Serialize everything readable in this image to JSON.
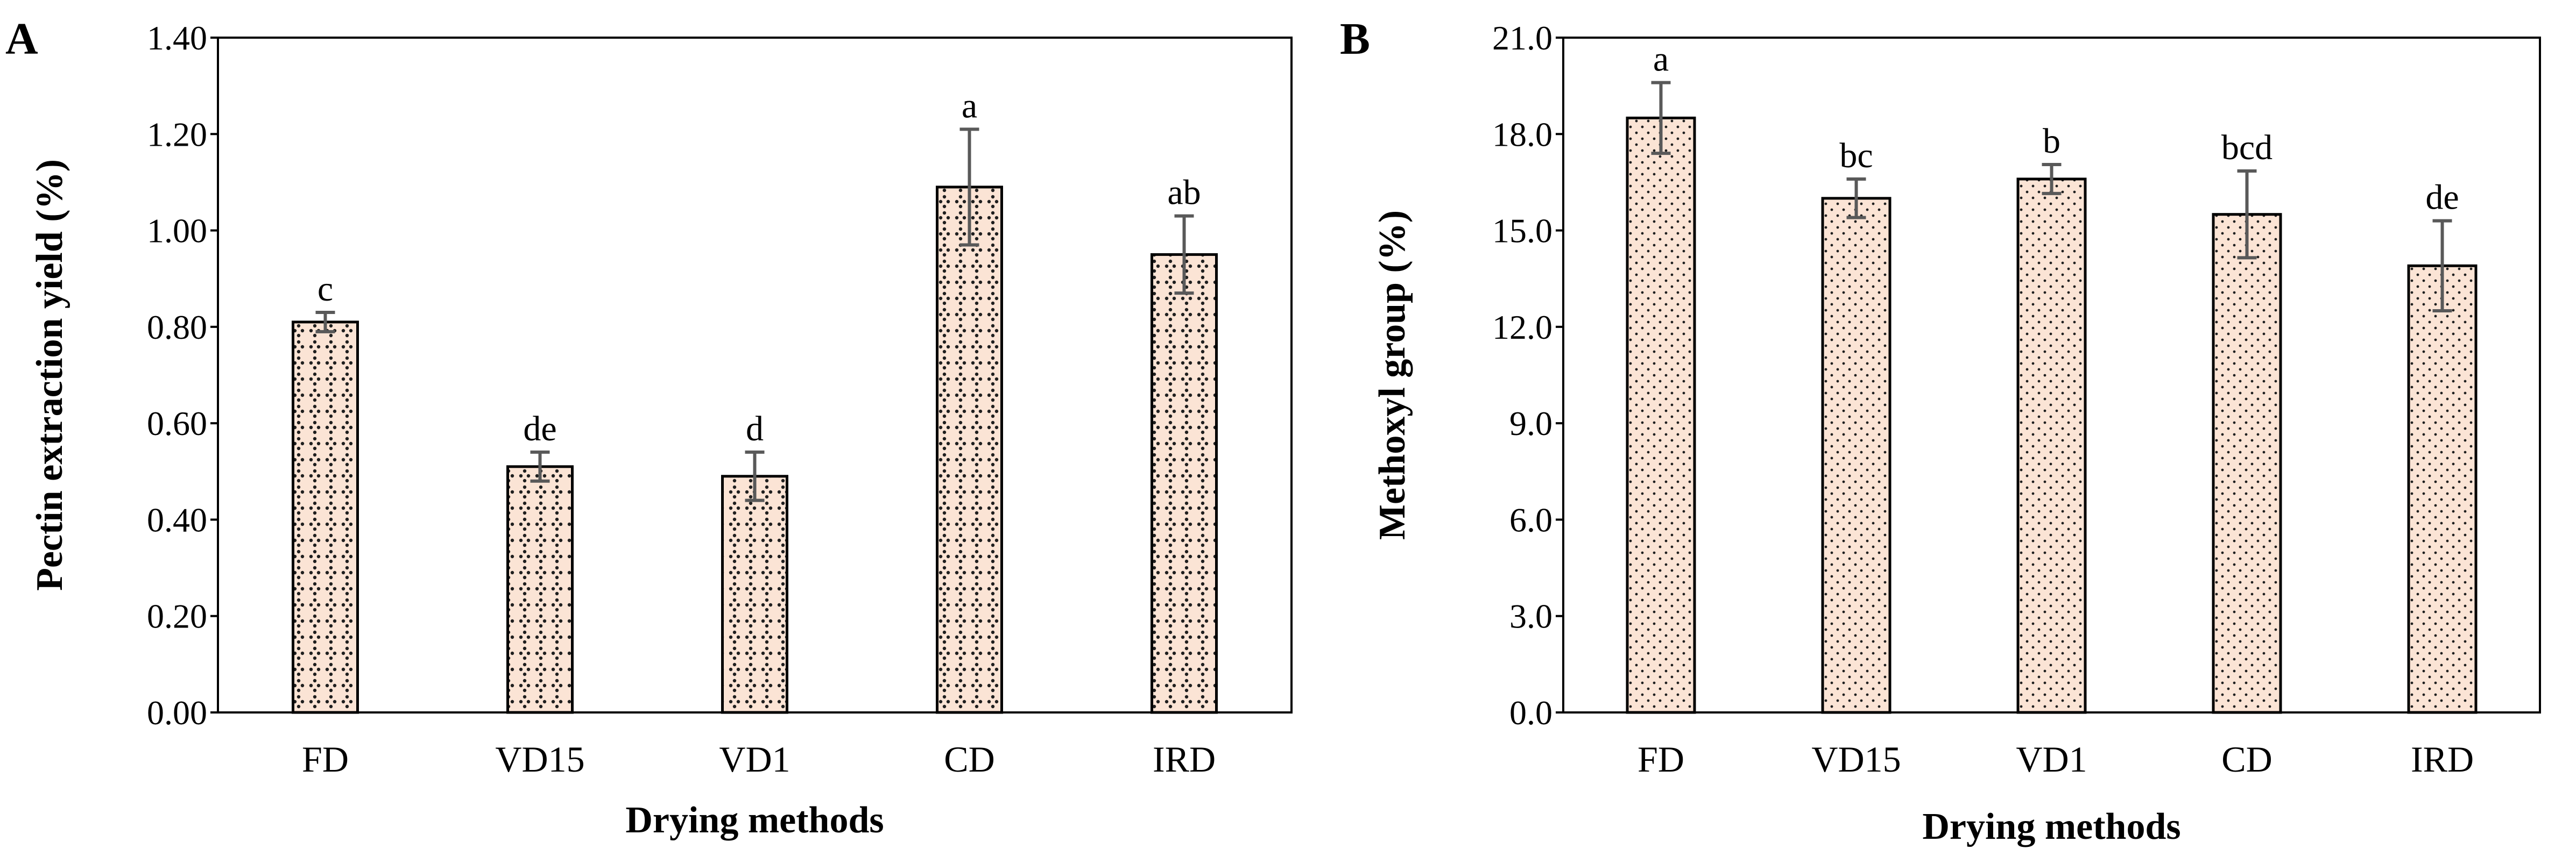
{
  "figure": {
    "bar_fill": "#fbe4d5",
    "bar_stroke": "#000000",
    "error_color": "#595959",
    "dot_color": "#1f1f1f"
  },
  "chart_data": [
    {
      "type": "bar",
      "panel_label": "A",
      "title": "",
      "xlabel": "Drying methods",
      "ylabel": "Pectin extraction yield  (%)",
      "categories": [
        "FD",
        "VD15",
        "VD1",
        "CD",
        "IRD"
      ],
      "values": [
        0.81,
        0.51,
        0.49,
        1.09,
        0.95
      ],
      "errors": [
        0.02,
        0.03,
        0.05,
        0.12,
        0.08
      ],
      "significance": [
        "c",
        "de",
        "d",
        "a",
        "ab"
      ],
      "ylim": [
        0,
        1.4
      ],
      "yticks": [
        0,
        0.2,
        0.4,
        0.6,
        0.8,
        1.0,
        1.2,
        1.4
      ],
      "ytick_labels": [
        "0.00",
        "0.20",
        "0.40",
        "0.60",
        "0.80",
        "1.00",
        "1.20",
        "1.40"
      ],
      "pattern": "diamond-dots",
      "grid": false
    },
    {
      "type": "bar",
      "panel_label": "B",
      "title": "",
      "xlabel": "Drying methods",
      "ylabel": "Methoxyl group (%)",
      "categories": [
        "FD",
        "VD15",
        "VD1",
        "CD",
        "IRD"
      ],
      "values": [
        18.5,
        16.0,
        16.6,
        15.5,
        13.9
      ],
      "errors": [
        1.1,
        0.6,
        0.45,
        1.35,
        1.4
      ],
      "significance": [
        "a",
        "bc",
        "b",
        "bcd",
        "de"
      ],
      "ylim": [
        0,
        21
      ],
      "yticks": [
        0,
        3,
        6,
        9,
        12,
        15,
        18,
        21
      ],
      "ytick_labels": [
        "0.0",
        "3.0",
        "6.0",
        "9.0",
        "12.0",
        "15.0",
        "18.0",
        "21.0"
      ],
      "pattern": "fine-dots",
      "grid": false
    }
  ]
}
